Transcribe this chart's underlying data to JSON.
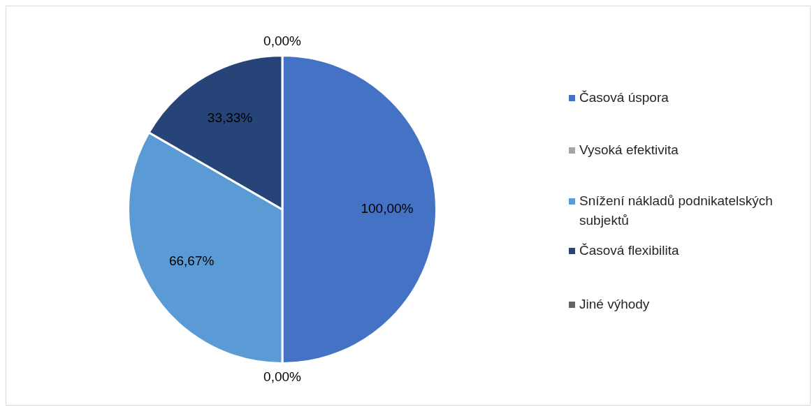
{
  "chart_data": {
    "type": "pie",
    "categories": [
      "Časová úspora",
      "Vysoká efektivita",
      "Snížení nákladů podnikatelských subjektů",
      "Časová flexibilita",
      "Jiné výhody"
    ],
    "values": [
      100,
      0,
      66.67,
      33.33,
      0
    ],
    "colors": [
      "#4472c4",
      "#a5a5a5",
      "#5b9bd5",
      "#264478",
      "#636363"
    ],
    "value_labels": [
      "100,00%",
      "0,00%",
      "66,67%",
      "33,33%",
      "0,00%"
    ],
    "legend": "right"
  }
}
